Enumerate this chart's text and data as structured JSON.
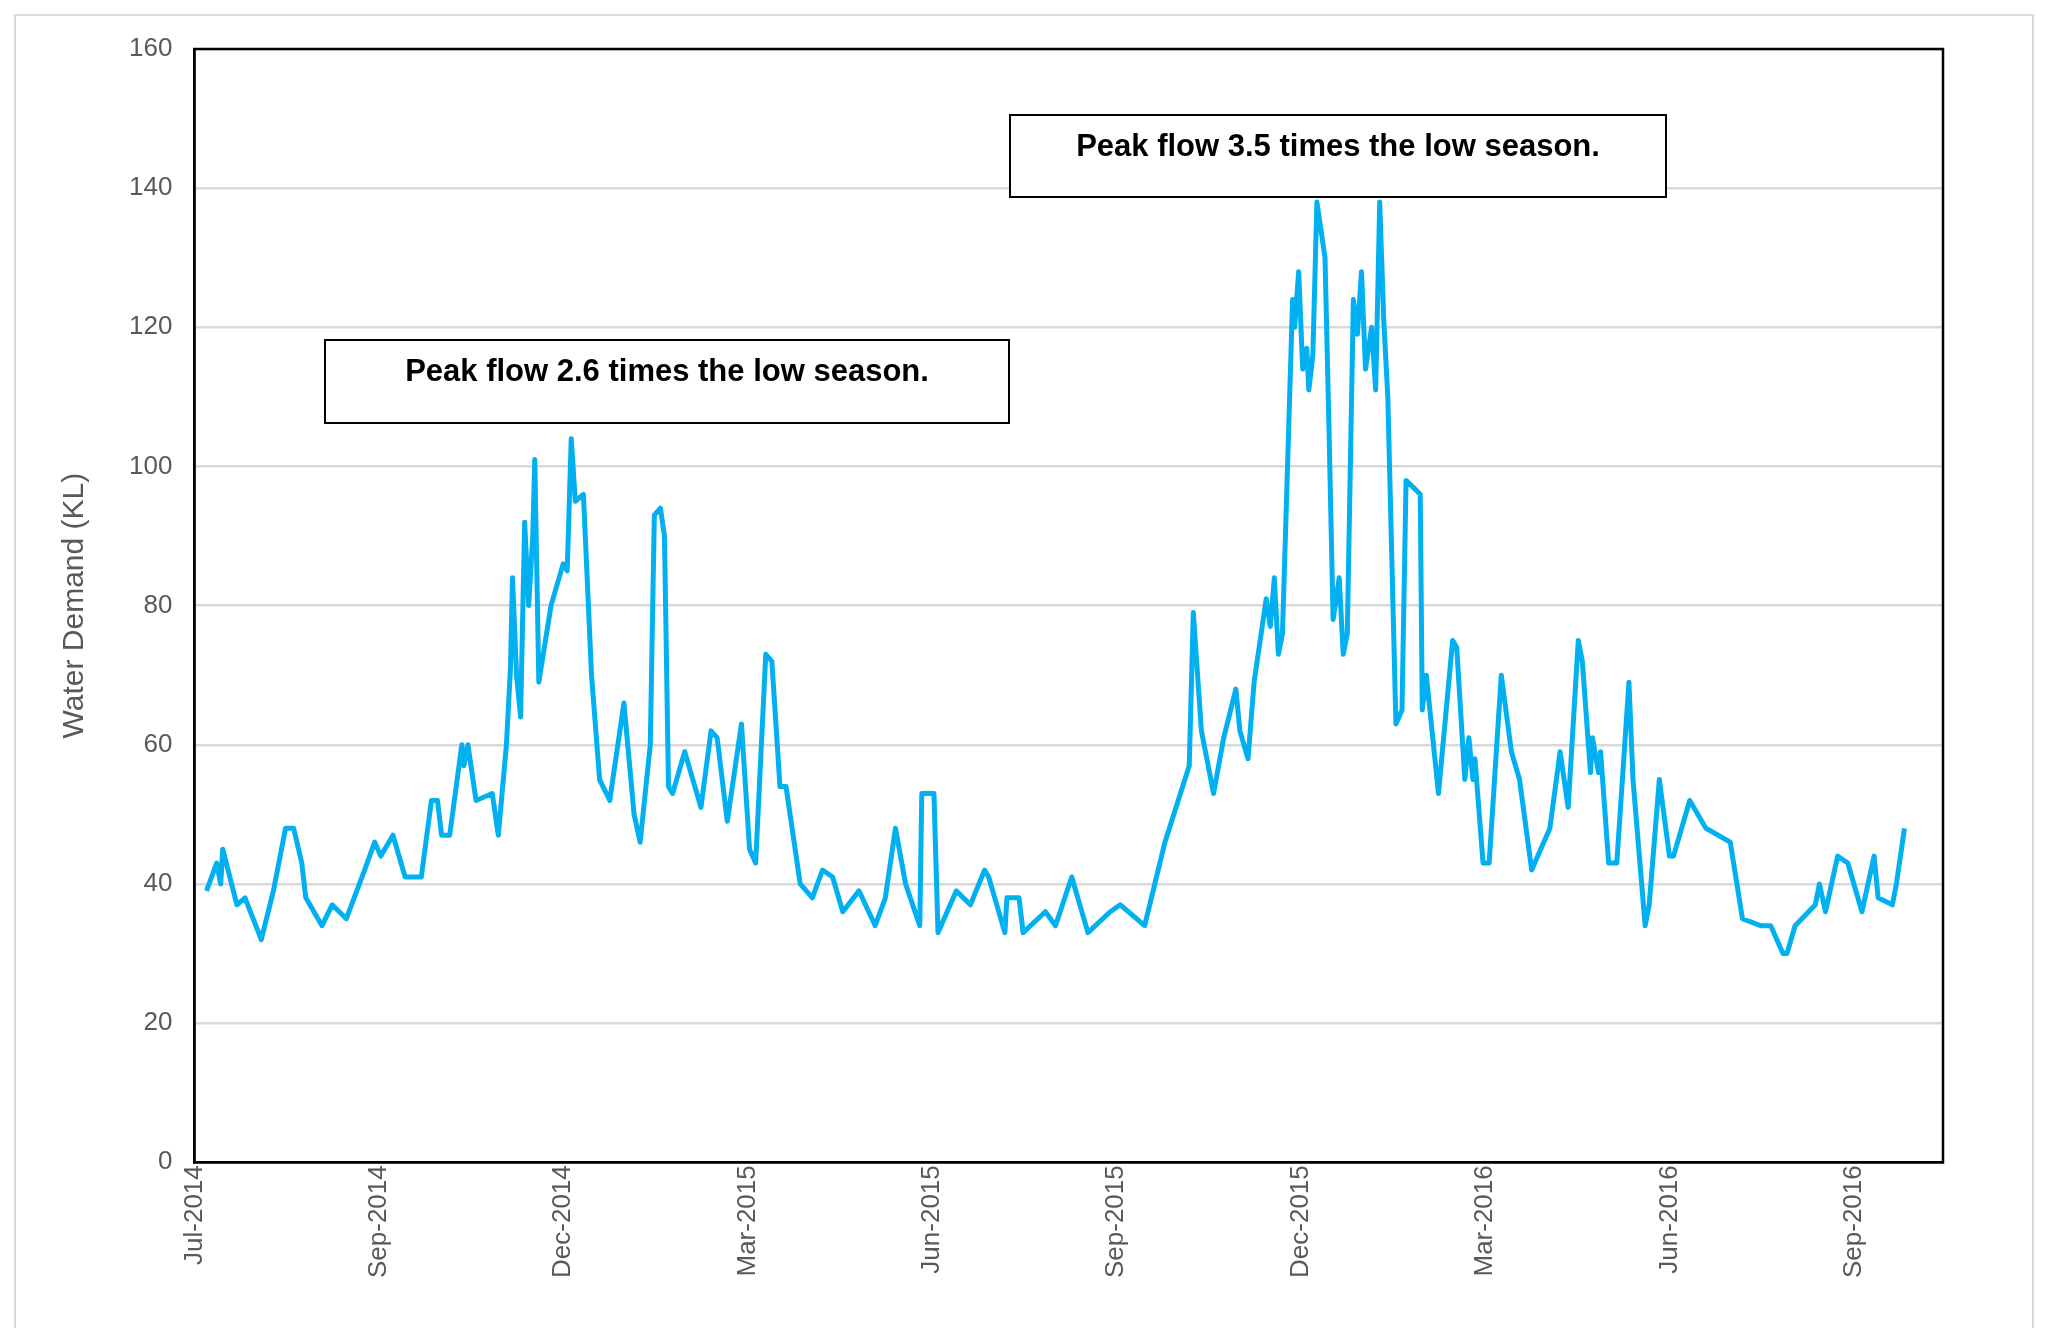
{
  "chart_data": {
    "type": "line",
    "ylabel": "Water Demand (KL)",
    "ylim": [
      0,
      160
    ],
    "yticks": [
      0,
      20,
      40,
      60,
      80,
      100,
      120,
      140,
      160
    ],
    "xlim": [
      "2014-07-01",
      "2016-11-10"
    ],
    "xticks": [
      {
        "value": "2014-07-01",
        "label": "Jul-2014"
      },
      {
        "value": "2014-09-30",
        "label": "Sep-2014"
      },
      {
        "value": "2014-12-30",
        "label": "Dec-2014"
      },
      {
        "value": "2015-03-31",
        "label": "Mar-2015"
      },
      {
        "value": "2015-06-30",
        "label": "Jun-2015"
      },
      {
        "value": "2015-09-29",
        "label": "Sep-2015"
      },
      {
        "value": "2015-12-29",
        "label": "Dec-2015"
      },
      {
        "value": "2016-03-29",
        "label": "Mar-2016"
      },
      {
        "value": "2016-06-28",
        "label": "Jun-2016"
      },
      {
        "value": "2016-09-27",
        "label": "Sep-2016"
      }
    ],
    "grid": "y",
    "legend": false,
    "marker": "none",
    "line_style": "solid",
    "series": [
      {
        "color": "#00b0f0",
        "x": [
          "2014-07-07",
          "2014-07-12",
          "2014-07-14",
          "2014-07-15",
          "2014-07-22",
          "2014-07-26",
          "2014-08-03",
          "2014-08-09",
          "2014-08-15",
          "2014-08-19",
          "2014-08-23",
          "2014-08-25",
          "2014-09-02",
          "2014-09-07",
          "2014-09-14",
          "2014-09-23",
          "2014-09-28",
          "2014-10-01",
          "2014-10-07",
          "2014-10-13",
          "2014-10-21",
          "2014-10-26",
          "2014-10-29",
          "2014-10-31",
          "2014-11-04",
          "2014-11-10",
          "2014-11-11",
          "2014-11-13",
          "2014-11-17",
          "2014-11-25",
          "2014-11-28",
          "2014-12-02",
          "2014-12-04",
          "2014-12-05",
          "2014-12-07",
          "2014-12-09",
          "2014-12-11",
          "2014-12-13",
          "2014-12-15",
          "2014-12-16",
          "2014-12-18",
          "2014-12-24",
          "2014-12-30",
          "2015-01-01",
          "2015-01-03",
          "2015-01-05",
          "2015-01-09",
          "2015-01-13",
          "2015-01-17",
          "2015-01-22",
          "2015-01-29",
          "2015-02-03",
          "2015-02-06",
          "2015-02-11",
          "2015-02-13",
          "2015-02-16",
          "2015-02-18",
          "2015-02-20",
          "2015-02-22",
          "2015-02-28",
          "2015-03-08",
          "2015-03-13",
          "2015-03-16",
          "2015-03-21",
          "2015-03-28",
          "2015-04-01",
          "2015-04-04",
          "2015-04-09",
          "2015-04-12",
          "2015-04-16",
          "2015-04-19",
          "2015-04-26",
          "2015-05-02",
          "2015-05-07",
          "2015-05-12",
          "2015-05-17",
          "2015-05-25",
          "2015-06-02",
          "2015-06-07",
          "2015-06-12",
          "2015-06-17",
          "2015-06-24",
          "2015-06-25",
          "2015-07-01",
          "2015-07-03",
          "2015-07-12",
          "2015-07-19",
          "2015-07-26",
          "2015-07-28",
          "2015-08-05",
          "2015-08-06",
          "2015-08-12",
          "2015-08-14",
          "2015-08-25",
          "2015-08-30",
          "2015-09-07",
          "2015-09-15",
          "2015-09-26",
          "2015-10-01",
          "2015-10-13",
          "2015-10-23",
          "2015-11-04",
          "2015-11-06",
          "2015-11-10",
          "2015-11-16",
          "2015-11-21",
          "2015-11-27",
          "2015-11-29",
          "2015-12-03",
          "2015-12-06",
          "2015-12-12",
          "2015-12-14",
          "2015-12-16",
          "2015-12-18",
          "2015-12-20",
          "2015-12-25",
          "2015-12-26",
          "2015-12-28",
          "2015-12-30",
          "2016-01-01",
          "2016-01-02",
          "2016-01-04",
          "2016-01-06",
          "2016-01-10",
          "2016-01-12",
          "2016-01-14",
          "2016-01-17",
          "2016-01-19",
          "2016-01-21",
          "2016-01-24",
          "2016-01-26",
          "2016-01-28",
          "2016-01-30",
          "2016-02-02",
          "2016-02-04",
          "2016-02-06",
          "2016-02-08",
          "2016-02-10",
          "2016-02-14",
          "2016-02-17",
          "2016-02-19",
          "2016-02-26",
          "2016-02-27",
          "2016-02-29",
          "2016-03-06",
          "2016-03-13",
          "2016-03-15",
          "2016-03-19",
          "2016-03-21",
          "2016-03-23",
          "2016-03-24",
          "2016-03-28",
          "2016-03-31",
          "2016-04-06",
          "2016-04-11",
          "2016-04-15",
          "2016-04-21",
          "2016-04-30",
          "2016-05-05",
          "2016-05-09",
          "2016-05-14",
          "2016-05-16",
          "2016-05-20",
          "2016-05-21",
          "2016-05-24",
          "2016-05-25",
          "2016-05-29",
          "2016-06-02",
          "2016-06-08",
          "2016-06-10",
          "2016-06-16",
          "2016-06-18",
          "2016-06-23",
          "2016-06-28",
          "2016-06-30",
          "2016-07-08",
          "2016-07-16",
          "2016-07-28",
          "2016-08-03",
          "2016-08-12",
          "2016-08-17",
          "2016-08-23",
          "2016-08-25",
          "2016-08-29",
          "2016-09-08",
          "2016-09-10",
          "2016-09-13",
          "2016-09-19",
          "2016-09-24",
          "2016-10-01",
          "2016-10-07",
          "2016-10-09",
          "2016-10-16",
          "2016-10-18",
          "2016-10-22"
        ],
        "values": [
          39,
          43,
          40,
          45,
          37,
          38,
          32,
          39,
          48,
          48,
          43,
          38,
          34,
          37,
          35,
          42,
          46,
          44,
          47,
          41,
          41,
          52,
          52,
          47,
          47,
          60,
          57,
          60,
          52,
          53,
          47,
          60,
          71,
          84,
          70,
          64,
          92,
          80,
          90,
          101,
          69,
          80,
          86,
          85,
          104,
          95,
          96,
          70,
          55,
          52,
          66,
          50,
          46,
          60,
          93,
          94,
          90,
          54,
          53,
          59,
          51,
          62,
          61,
          49,
          63,
          45,
          43,
          73,
          72,
          54,
          54,
          40,
          38,
          42,
          41,
          36,
          39,
          34,
          38,
          48,
          40,
          34,
          53,
          53,
          33,
          39,
          37,
          42,
          41,
          33,
          38,
          38,
          33,
          36,
          34,
          41,
          33,
          36,
          37,
          34,
          46,
          57,
          79,
          62,
          53,
          61,
          68,
          62,
          58,
          69,
          81,
          77,
          84,
          73,
          76,
          124,
          120,
          128,
          114,
          117,
          111,
          116,
          138,
          130,
          105,
          78,
          84,
          73,
          76,
          124,
          119,
          128,
          114,
          120,
          111,
          138,
          121,
          110,
          63,
          65,
          98,
          96,
          65,
          70,
          53,
          75,
          74,
          55,
          61,
          55,
          58,
          43,
          43,
          70,
          59,
          55,
          42,
          48,
          59,
          51,
          75,
          72,
          56,
          61,
          56,
          59,
          43,
          43,
          69,
          55,
          34,
          37,
          55,
          44,
          44,
          52,
          48,
          46,
          35,
          34,
          34,
          30,
          30,
          34,
          37,
          40,
          36,
          44,
          43,
          36,
          44,
          38,
          37,
          40,
          48
        ]
      }
    ],
    "annotations": [
      "Peak flow 2.6 times the low season.",
      "Peak flow 3.5 times the low season."
    ]
  }
}
